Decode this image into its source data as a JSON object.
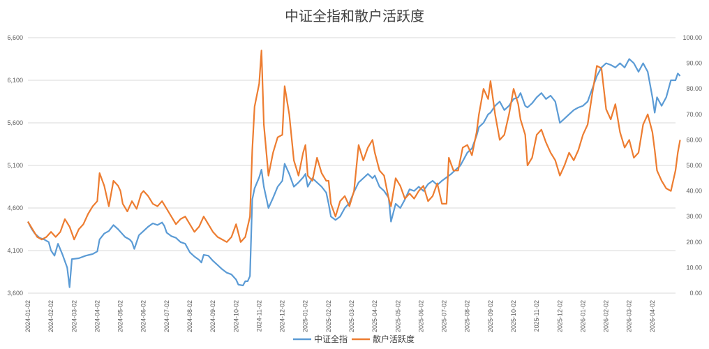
{
  "chart_data": {
    "type": "line",
    "title": "中证全指和散户活跃度",
    "legend_position": "bottom",
    "grid": true,
    "x_ticks": [
      "2024-01-02",
      "2024-02-02",
      "2024-03-02",
      "2024-04-02",
      "2024-05-02",
      "2024-06-02",
      "2024-07-02",
      "2024-08-02",
      "2024-09-02",
      "2024-10-02",
      "2024-11-02",
      "2024-12-02",
      "2025-01-02",
      "2025-02-02",
      "2025-03-02",
      "2025-04-02",
      "2025-05-02",
      "2025-06-02",
      "2025-07-02",
      "2025-08-02",
      "2025-09-02",
      "2025-10-02",
      "2025-11-02",
      "2025-12-02",
      "2026-01-02",
      "2026-02-02",
      "2026-03-02",
      "2026-04-02"
    ],
    "y_left": {
      "ticks": [
        "3,600",
        "4,100",
        "4,600",
        "5,100",
        "5,600",
        "6,100",
        "6,600"
      ],
      "range": [
        3600,
        6600
      ]
    },
    "y_right": {
      "ticks": [
        "0.00",
        "10.00",
        "20.00",
        "30.00",
        "40.00",
        "50.00",
        "60.00",
        "70.00",
        "80.00",
        "90.00",
        "100.00"
      ],
      "range": [
        0,
        100
      ]
    },
    "x_range": [
      0,
      27.5
    ],
    "series": [
      {
        "name": "中证全指",
        "axis": "left",
        "color": "#5b9bd5",
        "points": [
          [
            0,
            4440
          ],
          [
            0.15,
            4360
          ],
          [
            0.3,
            4300
          ],
          [
            0.5,
            4250
          ],
          [
            0.7,
            4230
          ],
          [
            0.9,
            4200
          ],
          [
            1.0,
            4100
          ],
          [
            1.15,
            4040
          ],
          [
            1.3,
            4180
          ],
          [
            1.5,
            4050
          ],
          [
            1.7,
            3900
          ],
          [
            1.8,
            3670
          ],
          [
            1.9,
            4000
          ],
          [
            2.2,
            4010
          ],
          [
            2.5,
            4040
          ],
          [
            2.8,
            4060
          ],
          [
            3.0,
            4090
          ],
          [
            3.1,
            4230
          ],
          [
            3.3,
            4300
          ],
          [
            3.5,
            4330
          ],
          [
            3.7,
            4400
          ],
          [
            3.9,
            4350
          ],
          [
            4.0,
            4320
          ],
          [
            4.2,
            4260
          ],
          [
            4.4,
            4230
          ],
          [
            4.5,
            4200
          ],
          [
            4.6,
            4120
          ],
          [
            4.8,
            4280
          ],
          [
            5.0,
            4330
          ],
          [
            5.2,
            4380
          ],
          [
            5.4,
            4420
          ],
          [
            5.6,
            4400
          ],
          [
            5.8,
            4430
          ],
          [
            5.9,
            4390
          ],
          [
            6.0,
            4310
          ],
          [
            6.2,
            4270
          ],
          [
            6.4,
            4250
          ],
          [
            6.6,
            4200
          ],
          [
            6.8,
            4180
          ],
          [
            7.0,
            4080
          ],
          [
            7.2,
            4030
          ],
          [
            7.4,
            3990
          ],
          [
            7.5,
            3960
          ],
          [
            7.6,
            4050
          ],
          [
            7.8,
            4040
          ],
          [
            8.0,
            3980
          ],
          [
            8.2,
            3930
          ],
          [
            8.4,
            3880
          ],
          [
            8.6,
            3840
          ],
          [
            8.8,
            3820
          ],
          [
            9.0,
            3760
          ],
          [
            9.1,
            3700
          ],
          [
            9.3,
            3690
          ],
          [
            9.4,
            3740
          ],
          [
            9.5,
            3740
          ],
          [
            9.6,
            3800
          ],
          [
            9.7,
            4700
          ],
          [
            9.8,
            4830
          ],
          [
            10.0,
            4960
          ],
          [
            10.1,
            5050
          ],
          [
            10.2,
            4850
          ],
          [
            10.4,
            4600
          ],
          [
            10.6,
            4720
          ],
          [
            10.8,
            4850
          ],
          [
            11.0,
            4920
          ],
          [
            11.1,
            5120
          ],
          [
            11.3,
            5000
          ],
          [
            11.5,
            4850
          ],
          [
            11.7,
            4900
          ],
          [
            11.9,
            4960
          ],
          [
            12.0,
            5000
          ],
          [
            12.1,
            4850
          ],
          [
            12.3,
            4950
          ],
          [
            12.5,
            4900
          ],
          [
            12.7,
            4850
          ],
          [
            12.9,
            4780
          ],
          [
            13.0,
            4650
          ],
          [
            13.1,
            4500
          ],
          [
            13.3,
            4460
          ],
          [
            13.5,
            4500
          ],
          [
            13.7,
            4600
          ],
          [
            13.9,
            4660
          ],
          [
            14.1,
            4790
          ],
          [
            14.3,
            4900
          ],
          [
            14.5,
            4950
          ],
          [
            14.7,
            5000
          ],
          [
            14.9,
            4950
          ],
          [
            15.0,
            4980
          ],
          [
            15.2,
            4850
          ],
          [
            15.4,
            4800
          ],
          [
            15.6,
            4720
          ],
          [
            15.7,
            4440
          ],
          [
            15.9,
            4650
          ],
          [
            16.1,
            4600
          ],
          [
            16.3,
            4700
          ],
          [
            16.5,
            4820
          ],
          [
            16.7,
            4800
          ],
          [
            16.9,
            4850
          ],
          [
            17.1,
            4800
          ],
          [
            17.3,
            4880
          ],
          [
            17.5,
            4920
          ],
          [
            17.7,
            4870
          ],
          [
            17.9,
            4920
          ],
          [
            18.1,
            4960
          ],
          [
            18.3,
            5000
          ],
          [
            18.5,
            5050
          ],
          [
            18.7,
            5100
          ],
          [
            18.9,
            5200
          ],
          [
            19.0,
            5250
          ],
          [
            19.2,
            5300
          ],
          [
            19.4,
            5450
          ],
          [
            19.5,
            5550
          ],
          [
            19.7,
            5600
          ],
          [
            19.9,
            5700
          ],
          [
            20.0,
            5720
          ],
          [
            20.2,
            5800
          ],
          [
            20.4,
            5850
          ],
          [
            20.6,
            5750
          ],
          [
            20.8,
            5800
          ],
          [
            21.0,
            5880
          ],
          [
            21.2,
            5900
          ],
          [
            21.3,
            5950
          ],
          [
            21.5,
            5800
          ],
          [
            21.6,
            5780
          ],
          [
            21.8,
            5830
          ],
          [
            22.0,
            5900
          ],
          [
            22.2,
            5950
          ],
          [
            22.4,
            5880
          ],
          [
            22.6,
            5920
          ],
          [
            22.8,
            5850
          ],
          [
            23.0,
            5600
          ],
          [
            23.2,
            5650
          ],
          [
            23.4,
            5700
          ],
          [
            23.6,
            5750
          ],
          [
            23.8,
            5780
          ],
          [
            24.0,
            5800
          ],
          [
            24.2,
            5850
          ],
          [
            24.4,
            6000
          ],
          [
            24.6,
            6150
          ],
          [
            24.8,
            6250
          ],
          [
            25.0,
            6300
          ],
          [
            25.2,
            6280
          ],
          [
            25.4,
            6250
          ],
          [
            25.6,
            6300
          ],
          [
            25.8,
            6250
          ],
          [
            26.0,
            6350
          ],
          [
            26.2,
            6300
          ],
          [
            26.4,
            6200
          ],
          [
            26.6,
            6300
          ],
          [
            26.8,
            6200
          ],
          [
            27.0,
            5900
          ],
          [
            27.1,
            5720
          ],
          [
            27.2,
            5900
          ],
          [
            27.4,
            5800
          ],
          [
            27.6,
            5900
          ],
          [
            27.8,
            6100
          ],
          [
            28.0,
            6100
          ],
          [
            28.1,
            6180
          ],
          [
            28.2,
            6150
          ]
        ]
      },
      {
        "name": "散户活跃度",
        "axis": "right",
        "color": "#ed7d31",
        "points": [
          [
            0,
            28
          ],
          [
            0.2,
            25
          ],
          [
            0.4,
            22
          ],
          [
            0.6,
            21
          ],
          [
            0.8,
            22
          ],
          [
            1.0,
            24
          ],
          [
            1.2,
            22
          ],
          [
            1.4,
            24
          ],
          [
            1.6,
            29
          ],
          [
            1.8,
            26
          ],
          [
            2.0,
            21
          ],
          [
            2.2,
            25
          ],
          [
            2.4,
            27
          ],
          [
            2.6,
            31
          ],
          [
            2.8,
            34
          ],
          [
            3.0,
            36
          ],
          [
            3.1,
            47
          ],
          [
            3.3,
            42
          ],
          [
            3.5,
            34
          ],
          [
            3.7,
            44
          ],
          [
            3.9,
            42
          ],
          [
            4.0,
            40
          ],
          [
            4.1,
            35
          ],
          [
            4.3,
            32
          ],
          [
            4.5,
            36
          ],
          [
            4.7,
            33
          ],
          [
            4.9,
            39
          ],
          [
            5.0,
            40
          ],
          [
            5.2,
            38
          ],
          [
            5.4,
            35
          ],
          [
            5.6,
            34
          ],
          [
            5.8,
            36
          ],
          [
            6.0,
            33
          ],
          [
            6.2,
            30
          ],
          [
            6.4,
            27
          ],
          [
            6.6,
            29
          ],
          [
            6.8,
            30
          ],
          [
            7.0,
            27
          ],
          [
            7.2,
            24
          ],
          [
            7.4,
            26
          ],
          [
            7.6,
            30
          ],
          [
            7.8,
            27
          ],
          [
            8.0,
            24
          ],
          [
            8.2,
            22
          ],
          [
            8.4,
            21
          ],
          [
            8.6,
            20
          ],
          [
            8.8,
            22
          ],
          [
            9.0,
            27
          ],
          [
            9.2,
            20
          ],
          [
            9.4,
            22
          ],
          [
            9.6,
            30
          ],
          [
            9.7,
            56
          ],
          [
            9.8,
            73
          ],
          [
            10.0,
            82
          ],
          [
            10.1,
            95
          ],
          [
            10.2,
            66
          ],
          [
            10.4,
            46
          ],
          [
            10.6,
            55
          ],
          [
            10.8,
            61
          ],
          [
            11.0,
            62
          ],
          [
            11.1,
            81
          ],
          [
            11.3,
            70
          ],
          [
            11.5,
            52
          ],
          [
            11.7,
            46
          ],
          [
            11.9,
            55
          ],
          [
            12.0,
            58
          ],
          [
            12.1,
            46
          ],
          [
            12.3,
            44
          ],
          [
            12.5,
            53
          ],
          [
            12.7,
            47
          ],
          [
            12.9,
            44
          ],
          [
            13.0,
            44
          ],
          [
            13.1,
            35
          ],
          [
            13.3,
            30
          ],
          [
            13.5,
            36
          ],
          [
            13.7,
            38
          ],
          [
            13.9,
            34
          ],
          [
            14.1,
            40
          ],
          [
            14.3,
            58
          ],
          [
            14.5,
            52
          ],
          [
            14.7,
            57
          ],
          [
            14.9,
            60
          ],
          [
            15.0,
            55
          ],
          [
            15.2,
            48
          ],
          [
            15.4,
            46
          ],
          [
            15.6,
            37
          ],
          [
            15.7,
            34
          ],
          [
            15.9,
            45
          ],
          [
            16.1,
            42
          ],
          [
            16.3,
            37
          ],
          [
            16.5,
            39
          ],
          [
            16.7,
            37
          ],
          [
            16.9,
            40
          ],
          [
            17.1,
            42
          ],
          [
            17.3,
            36
          ],
          [
            17.5,
            38
          ],
          [
            17.7,
            43
          ],
          [
            17.9,
            35
          ],
          [
            18.1,
            35
          ],
          [
            18.2,
            53
          ],
          [
            18.4,
            48
          ],
          [
            18.6,
            48
          ],
          [
            18.8,
            57
          ],
          [
            19.0,
            58
          ],
          [
            19.2,
            54
          ],
          [
            19.4,
            63
          ],
          [
            19.5,
            70
          ],
          [
            19.7,
            80
          ],
          [
            19.9,
            76
          ],
          [
            20.0,
            83
          ],
          [
            20.2,
            70
          ],
          [
            20.4,
            60
          ],
          [
            20.6,
            62
          ],
          [
            20.8,
            70
          ],
          [
            21.0,
            80
          ],
          [
            21.2,
            74
          ],
          [
            21.3,
            68
          ],
          [
            21.5,
            62
          ],
          [
            21.6,
            50
          ],
          [
            21.8,
            53
          ],
          [
            22.0,
            62
          ],
          [
            22.2,
            64
          ],
          [
            22.4,
            59
          ],
          [
            22.6,
            55
          ],
          [
            22.8,
            52
          ],
          [
            23.0,
            46
          ],
          [
            23.2,
            50
          ],
          [
            23.4,
            55
          ],
          [
            23.6,
            52
          ],
          [
            23.8,
            56
          ],
          [
            24.0,
            62
          ],
          [
            24.2,
            66
          ],
          [
            24.4,
            78
          ],
          [
            24.6,
            89
          ],
          [
            24.8,
            88
          ],
          [
            25.0,
            72
          ],
          [
            25.2,
            68
          ],
          [
            25.4,
            74
          ],
          [
            25.6,
            63
          ],
          [
            25.8,
            57
          ],
          [
            26.0,
            60
          ],
          [
            26.2,
            53
          ],
          [
            26.4,
            55
          ],
          [
            26.6,
            66
          ],
          [
            26.8,
            70
          ],
          [
            27.0,
            63
          ],
          [
            27.1,
            56
          ],
          [
            27.2,
            48
          ],
          [
            27.4,
            44
          ],
          [
            27.6,
            41
          ],
          [
            27.8,
            40
          ],
          [
            28.0,
            48
          ],
          [
            28.1,
            55
          ],
          [
            28.2,
            60
          ]
        ]
      }
    ]
  }
}
